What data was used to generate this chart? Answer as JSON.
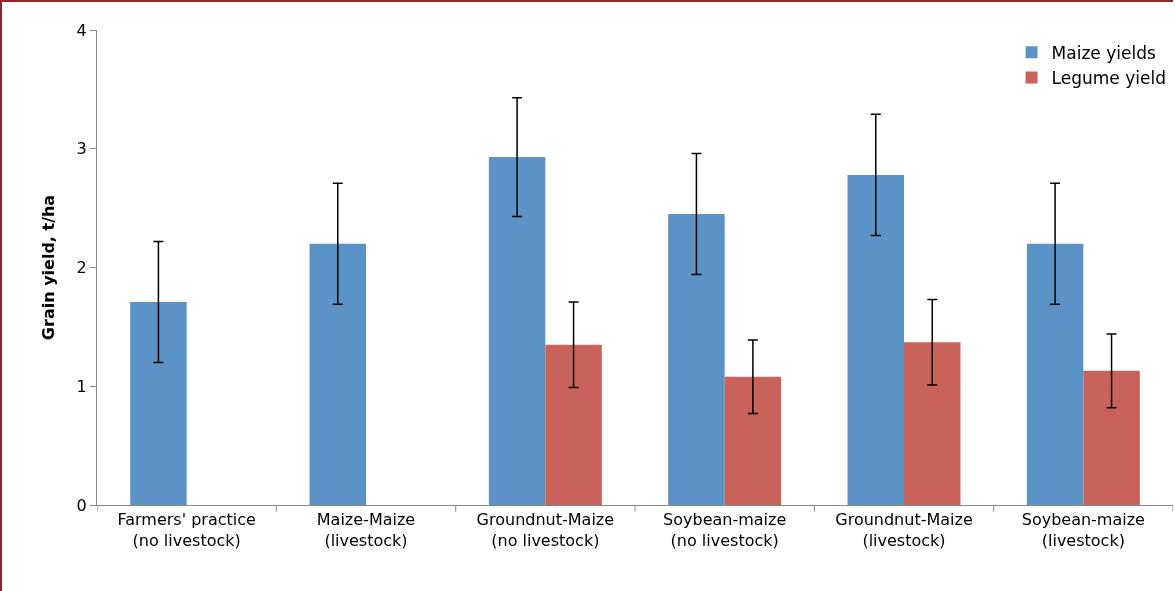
{
  "chart_data": {
    "type": "bar",
    "ylabel": "Grain yield, t/ha",
    "categories": [
      "Farmers' practice\n(no livestock)",
      "Maize-Maize\n(livestock)",
      "Groundnut-Maize\n(no livestock)",
      "Soybean-maize\n(no livestock)",
      "Groundnut-Maize\n(livestock)",
      "Soybean-maize\n(livestock)"
    ],
    "series": [
      {
        "name": "Maize yields",
        "color": "#5b93c6",
        "values": [
          1.71,
          2.2,
          2.93,
          2.45,
          2.78,
          2.2
        ],
        "errors": [
          0.51,
          0.51,
          0.5,
          0.51,
          0.51,
          0.51
        ]
      },
      {
        "name": "Legume yield",
        "color": "#c9625b",
        "values": [
          null,
          null,
          1.35,
          1.08,
          1.37,
          1.13
        ],
        "errors": [
          null,
          null,
          0.36,
          0.31,
          0.36,
          0.31
        ]
      }
    ],
    "ylim": [
      0,
      4
    ],
    "yticks": [
      0,
      1,
      2,
      3,
      4
    ],
    "grid": false,
    "legend": "top right"
  }
}
